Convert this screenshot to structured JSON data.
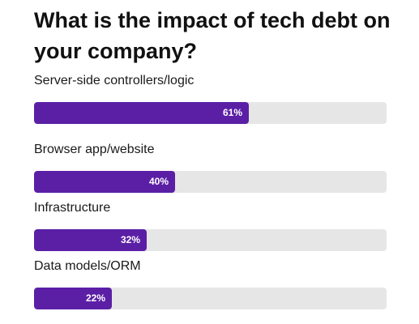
{
  "chart_data": {
    "type": "bar",
    "orientation": "horizontal",
    "title": "What is the impact of tech debt on your company?",
    "categories": [
      "Server-side controllers/logic",
      "Browser app/website",
      "Infrastructure",
      "Data models/ORM"
    ],
    "values": [
      61,
      40,
      32,
      22
    ],
    "value_labels": [
      "61%",
      "40%",
      "32%",
      "22%"
    ],
    "unit": "%",
    "xlim": [
      0,
      100
    ],
    "grid": false,
    "legend": "none",
    "colors": {
      "bar": "#5b1fa6",
      "track": "#e6e6e6",
      "value_text": "#ffffff"
    }
  }
}
